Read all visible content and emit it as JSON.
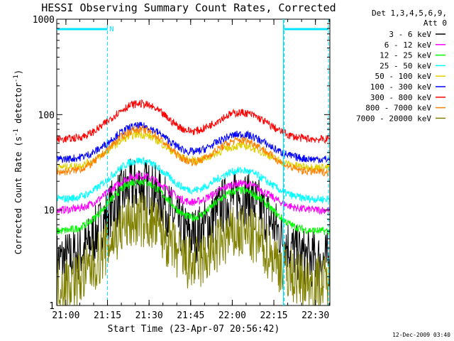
{
  "chart_data": {
    "type": "line",
    "title": "HESSI Observing Summary Count Rates, Corrected",
    "xlabel": "Start Time (23-Apr-07 20:56:42)",
    "ylabel": "Corrected Count Rate (s",
    "ylabel_sup1": "-1",
    "ylabel_mid": " detector",
    "ylabel_sup2": "-1",
    "ylabel_end": ")",
    "y_scale": "log",
    "ylim": [
      1,
      1000
    ],
    "xlim_minutes": [
      0,
      98.5
    ],
    "x_tick_labels": [
      "21:00",
      "21:15",
      "21:30",
      "21:45",
      "22:00",
      "22:15",
      "22:30"
    ],
    "x_tick_minutes": [
      3.3,
      18.3,
      33.3,
      48.3,
      63.3,
      78.3,
      93.3
    ],
    "y_tick_labels": [
      "1",
      "10",
      "100",
      "1000"
    ],
    "y_tick_values": [
      1,
      10,
      100,
      1000
    ],
    "legend_header": [
      "Det 1,3,4,5,6,9,",
      "Att 0"
    ],
    "legend_position": "right",
    "annotation_n": "N",
    "timestamp": "12-Dec-2009 03:40",
    "series": [
      {
        "name": "3 - 6 keV",
        "color": "#000000",
        "base": 2.6,
        "peak1": 16,
        "peak2": 12
      },
      {
        "name": "6 - 12 keV",
        "color": "#ff00ff",
        "base": 10,
        "peak1": 23,
        "peak2": 19
      },
      {
        "name": "12 - 25 keV",
        "color": "#00ff00",
        "base": 6,
        "peak1": 20,
        "peak2": 16
      },
      {
        "name": "25 - 50 keV",
        "color": "#00ffff",
        "base": 13,
        "peak1": 33,
        "peak2": 26
      },
      {
        "name": "50 - 100 keV",
        "color": "#e0d000",
        "base": 28,
        "peak1": 62,
        "peak2": 47
      },
      {
        "name": "100 - 300 keV",
        "color": "#0000ff",
        "base": 34,
        "peak1": 76,
        "peak2": 62
      },
      {
        "name": "300 - 800 keV",
        "color": "#ff0000",
        "base": 55,
        "peak1": 130,
        "peak2": 105
      },
      {
        "name": "800 - 7000 keV",
        "color": "#ff8000",
        "base": 25,
        "peak1": 70,
        "peak2": 54
      },
      {
        "name": "7000 - 20000 keV",
        "color": "#808000",
        "base": 1.5,
        "peak1": 7,
        "peak2": 5
      }
    ],
    "peak_times_minutes": [
      29.8,
      66.3
    ],
    "peak_width_minutes": 8.5,
    "attenuator_intervals_minutes": [
      [
        0,
        18.3
      ],
      [
        82,
        98
      ]
    ],
    "saa_lines_minutes": [
      18.3,
      82,
      98
    ]
  }
}
